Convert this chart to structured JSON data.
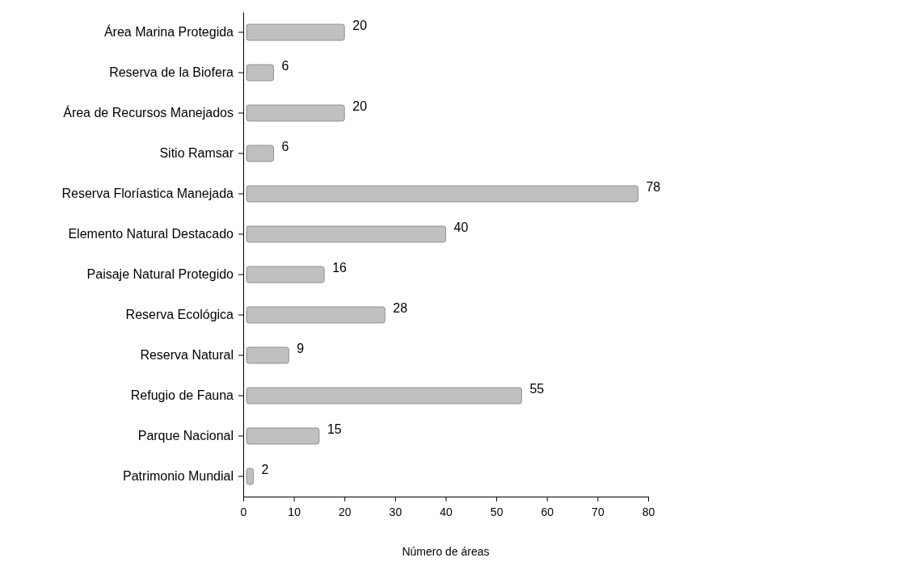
{
  "chart_data": {
    "type": "bar",
    "orientation": "horizontal",
    "xlabel": "Número de áreas",
    "categories": [
      "Área Marina Protegida",
      "Reserva de la Biofera",
      "Área de Recursos Manejados",
      "Sitio Ramsar",
      "Reserva Floríastica Manejada",
      "Elemento Natural Destacado",
      "Paisaje Natural Protegido",
      "Reserva Ecológica",
      "Reserva Natural",
      "Refugio de Fauna",
      "Parque Nacional",
      "Patrimonio Mundial"
    ],
    "values": [
      20,
      6,
      20,
      6,
      78,
      40,
      16,
      28,
      9,
      55,
      15,
      2
    ],
    "color": "#c0c0c0",
    "xlim": [
      0,
      80
    ],
    "xticks": [
      0,
      10,
      20,
      30,
      40,
      50,
      60,
      70,
      80
    ],
    "data_labels": true,
    "grid": false
  }
}
